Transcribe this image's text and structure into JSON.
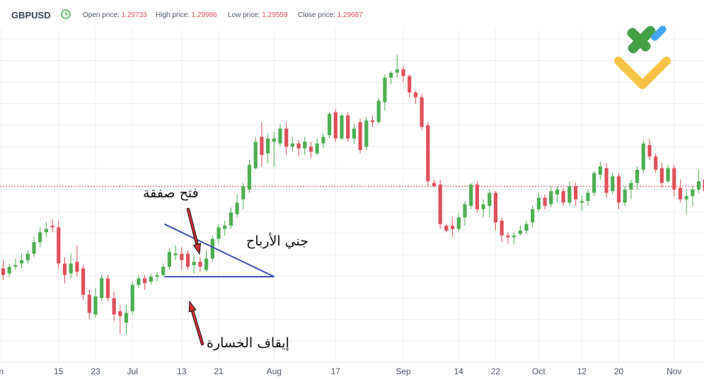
{
  "header": {
    "symbol": "GBPUSD",
    "open_label": "Open price:",
    "open_value": "1.29733",
    "high_label": "High price:",
    "high_value": "1.29986",
    "low_label": "Low price:",
    "low_value": "1.29559",
    "close_label": "Close price:",
    "close_value": "1.29687"
  },
  "annotations": {
    "open_trade": "فتح صفقة",
    "take_profit": "جني الأرباح",
    "stop_loss": "إيقاف الخسارة"
  },
  "colors": {
    "up": "#4caf50",
    "down": "#e0505a",
    "line": "#3f51b5",
    "arrow": "#d32f2f"
  },
  "chart_data": {
    "type": "candlestick",
    "x_ticks": [
      {
        "label": "n",
        "i": -0.3
      },
      {
        "label": "15",
        "i": 9
      },
      {
        "label": "23",
        "i": 15
      },
      {
        "label": "Jul",
        "i": 21
      },
      {
        "label": "13",
        "i": 29
      },
      {
        "label": "21",
        "i": 35
      },
      {
        "label": "Aug",
        "i": 44
      },
      {
        "label": "17",
        "i": 54
      },
      {
        "label": "Sep",
        "i": 65
      },
      {
        "label": "14",
        "i": 74
      },
      {
        "label": "22",
        "i": 80
      },
      {
        "label": "Oct",
        "i": 87
      },
      {
        "label": "12",
        "i": 94
      },
      {
        "label": "20",
        "i": 100
      },
      {
        "label": "Nov",
        "i": 109
      }
    ],
    "candles": [
      [
        0.5,
        0.3,
        0.75,
        0.15
      ],
      [
        0.35,
        0.55,
        0.65,
        0.25
      ],
      [
        0.55,
        0.6,
        0.8,
        0.45
      ],
      [
        0.65,
        0.75,
        0.95,
        0.5
      ],
      [
        0.75,
        0.95,
        1.05,
        0.65
      ],
      [
        0.95,
        1.3,
        1.45,
        0.85
      ],
      [
        1.3,
        1.6,
        1.75,
        1.15
      ],
      [
        1.6,
        1.7,
        1.9,
        1.45
      ],
      [
        1.8,
        1.75,
        2.0,
        1.6
      ],
      [
        1.75,
        0.65,
        1.95,
        0.5
      ],
      [
        0.65,
        0.3,
        0.85,
        0.05
      ],
      [
        0.35,
        0.65,
        0.95,
        0.2
      ],
      [
        0.7,
        0.4,
        1.2,
        0.25
      ],
      [
        0.5,
        -0.3,
        0.6,
        -0.45
      ],
      [
        -0.3,
        -0.85,
        -0.15,
        -1.05
      ],
      [
        -0.9,
        -0.35,
        -0.1,
        -1.0
      ],
      [
        -0.4,
        0.2,
        0.3,
        -0.5
      ],
      [
        0.2,
        -0.4,
        0.3,
        -0.5
      ],
      [
        -0.4,
        -0.9,
        -0.2,
        -1.1
      ],
      [
        -0.8,
        -0.95,
        -0.6,
        -1.5
      ],
      [
        -1.15,
        -0.85,
        -0.6,
        -1.5
      ],
      [
        -0.8,
        0.0,
        0.1,
        -0.9
      ],
      [
        0.0,
        0.2,
        0.3,
        -0.1
      ],
      [
        0.2,
        0.05,
        0.3,
        -0.15
      ],
      [
        0.1,
        0.25,
        0.35,
        0.0
      ],
      [
        0.25,
        0.3,
        0.4,
        0.1
      ],
      [
        0.3,
        0.55,
        0.65,
        0.25
      ],
      [
        0.55,
        1.0,
        1.1,
        0.45
      ],
      [
        0.9,
        0.95,
        1.2,
        0.75
      ],
      [
        0.95,
        0.75,
        1.15,
        0.45
      ],
      [
        0.95,
        0.55,
        1.05,
        0.45
      ],
      [
        0.6,
        0.7,
        0.9,
        0.35
      ],
      [
        0.7,
        0.55,
        0.85,
        0.4
      ],
      [
        0.45,
        0.8,
        1.05,
        0.4
      ],
      [
        0.8,
        1.4,
        1.5,
        0.7
      ],
      [
        1.4,
        1.75,
        1.85,
        1.25
      ],
      [
        1.7,
        1.8,
        1.95,
        1.5
      ],
      [
        1.8,
        2.2,
        2.35,
        1.7
      ],
      [
        2.15,
        2.5,
        2.75,
        2.05
      ],
      [
        2.6,
        3.0,
        3.1,
        2.3
      ],
      [
        2.9,
        3.65,
        3.8,
        2.8
      ],
      [
        3.55,
        4.35,
        4.5,
        3.5
      ],
      [
        4.5,
        3.95,
        4.95,
        3.6
      ],
      [
        4.0,
        4.45,
        4.6,
        3.7
      ],
      [
        4.35,
        4.45,
        4.65,
        3.6
      ],
      [
        4.3,
        4.75,
        4.9,
        4.2
      ],
      [
        4.75,
        4.2,
        4.95,
        3.95
      ],
      [
        4.2,
        4.3,
        4.5,
        4.05
      ],
      [
        4.3,
        4.15,
        4.4,
        3.9
      ],
      [
        4.15,
        4.35,
        4.5,
        3.95
      ],
      [
        4.2,
        4.05,
        4.35,
        3.85
      ],
      [
        4.0,
        4.3,
        4.45,
        3.95
      ],
      [
        4.3,
        4.5,
        4.6,
        4.15
      ],
      [
        4.55,
        5.2,
        5.25,
        4.45
      ],
      [
        5.25,
        4.45,
        5.35,
        4.35
      ],
      [
        4.45,
        5.15,
        5.2,
        4.4
      ],
      [
        5.15,
        4.45,
        5.25,
        4.35
      ],
      [
        4.45,
        4.75,
        4.9,
        4.3
      ],
      [
        4.95,
        4.1,
        5.05,
        4.0
      ],
      [
        4.2,
        5.0,
        5.1,
        4.1
      ],
      [
        5.0,
        4.95,
        5.15,
        4.8
      ],
      [
        4.95,
        5.6,
        5.7,
        4.9
      ],
      [
        5.55,
        6.3,
        6.4,
        5.3
      ],
      [
        6.3,
        6.45,
        6.5,
        6.1
      ],
      [
        6.45,
        6.55,
        7.0,
        6.3
      ],
      [
        6.55,
        6.35,
        6.65,
        6.15
      ],
      [
        6.35,
        5.85,
        6.4,
        5.7
      ],
      [
        5.85,
        5.7,
        5.9,
        5.5
      ],
      [
        5.7,
        4.8,
        5.8,
        4.7
      ],
      [
        4.85,
        3.15,
        4.95,
        3.0
      ],
      [
        3.1,
        3.0,
        3.2,
        2.95
      ],
      [
        3.05,
        1.85,
        3.2,
        1.7
      ],
      [
        1.8,
        1.65,
        1.85,
        1.6
      ],
      [
        1.8,
        1.7,
        2.05,
        1.45
      ],
      [
        1.7,
        2.05,
        2.2,
        1.6
      ],
      [
        2.05,
        2.45,
        2.55,
        1.8
      ],
      [
        2.4,
        3.05,
        3.1,
        2.3
      ],
      [
        3.05,
        2.3,
        3.15,
        2.2
      ],
      [
        2.3,
        2.45,
        2.6,
        2.05
      ],
      [
        2.4,
        2.8,
        2.9,
        2.05
      ],
      [
        2.8,
        1.9,
        2.85,
        1.65
      ],
      [
        1.95,
        1.5,
        2.05,
        1.3
      ],
      [
        1.5,
        1.45,
        1.6,
        1.25
      ],
      [
        1.45,
        1.5,
        1.6,
        1.25
      ],
      [
        1.55,
        1.65,
        1.8,
        1.5
      ],
      [
        1.65,
        1.85,
        1.95,
        1.55
      ],
      [
        1.9,
        2.3,
        2.4,
        1.75
      ],
      [
        2.3,
        2.65,
        2.8,
        2.2
      ],
      [
        2.65,
        2.4,
        2.75,
        2.3
      ],
      [
        2.45,
        2.85,
        3.0,
        2.35
      ],
      [
        2.75,
        2.9,
        3.0,
        2.5
      ],
      [
        2.85,
        2.5,
        2.95,
        2.4
      ],
      [
        2.5,
        3.0,
        3.15,
        2.4
      ],
      [
        3.0,
        2.6,
        3.1,
        2.4
      ],
      [
        2.5,
        2.55,
        2.7,
        2.25
      ],
      [
        2.55,
        2.8,
        2.9,
        2.4
      ],
      [
        2.8,
        3.4,
        3.45,
        2.7
      ],
      [
        3.35,
        3.6,
        3.75,
        3.2
      ],
      [
        3.55,
        2.8,
        3.7,
        2.65
      ],
      [
        2.85,
        3.3,
        3.4,
        2.75
      ],
      [
        3.3,
        2.5,
        3.4,
        2.3
      ],
      [
        2.5,
        2.9,
        3.0,
        2.4
      ],
      [
        2.9,
        3.1,
        3.2,
        2.6
      ],
      [
        3.1,
        3.5,
        3.6,
        2.9
      ],
      [
        3.5,
        4.3,
        4.4,
        3.4
      ],
      [
        4.25,
        3.9,
        4.45,
        3.8
      ],
      [
        3.9,
        3.5,
        4.0,
        3.4
      ],
      [
        3.55,
        3.1,
        3.7,
        2.95
      ],
      [
        3.15,
        3.55,
        3.65,
        3.1
      ],
      [
        3.55,
        2.9,
        3.65,
        2.7
      ],
      [
        2.95,
        2.6,
        3.2,
        2.5
      ],
      [
        2.6,
        2.7,
        2.9,
        2.15
      ],
      [
        2.7,
        2.9,
        3.0,
        2.4
      ],
      [
        2.9,
        3.15,
        3.5,
        2.8
      ],
      [
        3.2,
        2.85,
        3.3,
        2.7
      ],
      [
        2.85,
        3.65,
        3.75,
        2.75
      ],
      [
        3.7,
        4.15,
        4.25,
        3.6
      ],
      [
        4.15,
        4.6,
        4.7,
        3.9
      ]
    ],
    "price_line": 3.0,
    "ylim": [
      -2.2,
      7.8
    ],
    "triangle": {
      "apex_i": 27,
      "right_i": 44,
      "top_start": 0.6,
      "bottom": 0.25
    }
  }
}
